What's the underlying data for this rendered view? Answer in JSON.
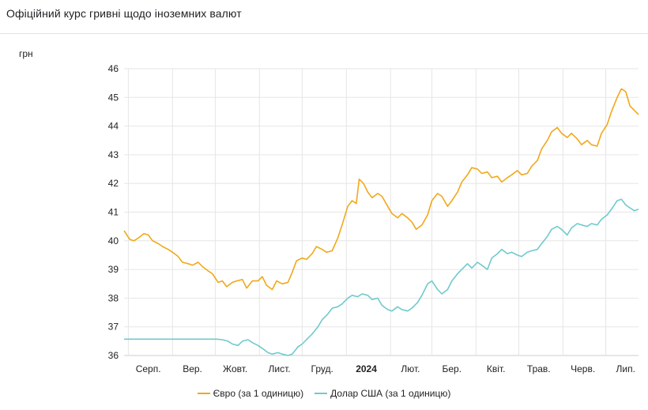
{
  "title": "Офіційний курс гривні щодо іноземних валют",
  "colors": {
    "euro": "#f1a81a",
    "usd": "#6fcacd",
    "grid": "#e6e6e6",
    "axis": "#cccccc"
  },
  "chart_data": {
    "type": "line",
    "ylabel": "грн",
    "ylim": [
      36,
      46
    ],
    "y_ticks": [
      36,
      37,
      38,
      39,
      40,
      41,
      42,
      43,
      44,
      45,
      46
    ],
    "x_range": [
      "2023-07-29",
      "2024-07-24"
    ],
    "x_ticks": [
      {
        "label": "Серп.",
        "date": "2023-08-15",
        "bold": false
      },
      {
        "label": "Вер.",
        "date": "2023-09-15",
        "bold": false
      },
      {
        "label": "Жовт.",
        "date": "2023-10-15",
        "bold": false
      },
      {
        "label": "Лист.",
        "date": "2023-11-15",
        "bold": false
      },
      {
        "label": "Груд.",
        "date": "2023-12-15",
        "bold": false
      },
      {
        "label": "2024",
        "date": "2024-01-15",
        "bold": true
      },
      {
        "label": "Лют.",
        "date": "2024-02-15",
        "bold": false
      },
      {
        "label": "Бер.",
        "date": "2024-03-15",
        "bold": false
      },
      {
        "label": "Квіт.",
        "date": "2024-04-15",
        "bold": false
      },
      {
        "label": "Трав.",
        "date": "2024-05-15",
        "bold": false
      },
      {
        "label": "Черв.",
        "date": "2024-06-15",
        "bold": false
      },
      {
        "label": "Лип.",
        "date": "2024-07-15",
        "bold": false
      }
    ],
    "grid_dates": [
      "2023-08-01",
      "2023-09-01",
      "2023-10-01",
      "2023-11-01",
      "2023-12-01",
      "2024-01-01",
      "2024-02-01",
      "2024-03-01",
      "2024-04-01",
      "2024-05-01",
      "2024-06-01",
      "2024-07-01"
    ],
    "grid": true,
    "legend_position": "bottom",
    "series": [
      {
        "name": "Євро (за 1 одиницю)",
        "key": "euro",
        "points": [
          [
            "2023-07-29",
            40.35
          ],
          [
            "2023-08-02",
            40.05
          ],
          [
            "2023-08-05",
            40.0
          ],
          [
            "2023-08-08",
            40.1
          ],
          [
            "2023-08-12",
            40.25
          ],
          [
            "2023-08-15",
            40.2
          ],
          [
            "2023-08-18",
            40.0
          ],
          [
            "2023-08-22",
            39.9
          ],
          [
            "2023-08-25",
            39.8
          ],
          [
            "2023-08-29",
            39.7
          ],
          [
            "2023-09-01",
            39.6
          ],
          [
            "2023-09-05",
            39.45
          ],
          [
            "2023-09-08",
            39.25
          ],
          [
            "2023-09-12",
            39.2
          ],
          [
            "2023-09-15",
            39.15
          ],
          [
            "2023-09-19",
            39.25
          ],
          [
            "2023-09-22",
            39.1
          ],
          [
            "2023-09-26",
            38.95
          ],
          [
            "2023-09-29",
            38.85
          ],
          [
            "2023-10-03",
            38.55
          ],
          [
            "2023-10-06",
            38.6
          ],
          [
            "2023-10-09",
            38.4
          ],
          [
            "2023-10-13",
            38.55
          ],
          [
            "2023-10-16",
            38.6
          ],
          [
            "2023-10-20",
            38.65
          ],
          [
            "2023-10-23",
            38.35
          ],
          [
            "2023-10-27",
            38.6
          ],
          [
            "2023-10-31",
            38.6
          ],
          [
            "2023-11-03",
            38.75
          ],
          [
            "2023-11-06",
            38.45
          ],
          [
            "2023-11-10",
            38.3
          ],
          [
            "2023-11-13",
            38.6
          ],
          [
            "2023-11-17",
            38.5
          ],
          [
            "2023-11-21",
            38.55
          ],
          [
            "2023-11-24",
            38.9
          ],
          [
            "2023-11-27",
            39.3
          ],
          [
            "2023-12-01",
            39.4
          ],
          [
            "2023-12-04",
            39.35
          ],
          [
            "2023-12-08",
            39.55
          ],
          [
            "2023-12-11",
            39.8
          ],
          [
            "2023-12-15",
            39.7
          ],
          [
            "2023-12-18",
            39.6
          ],
          [
            "2023-12-22",
            39.65
          ],
          [
            "2023-12-26",
            40.1
          ],
          [
            "2023-12-29",
            40.55
          ],
          [
            "2024-01-02",
            41.2
          ],
          [
            "2024-01-05",
            41.4
          ],
          [
            "2024-01-08",
            41.3
          ],
          [
            "2024-01-10",
            42.15
          ],
          [
            "2024-01-13",
            42.0
          ],
          [
            "2024-01-16",
            41.7
          ],
          [
            "2024-01-19",
            41.5
          ],
          [
            "2024-01-23",
            41.65
          ],
          [
            "2024-01-26",
            41.55
          ],
          [
            "2024-01-30",
            41.2
          ],
          [
            "2024-02-02",
            40.95
          ],
          [
            "2024-02-06",
            40.8
          ],
          [
            "2024-02-09",
            40.95
          ],
          [
            "2024-02-13",
            40.8
          ],
          [
            "2024-02-16",
            40.65
          ],
          [
            "2024-02-19",
            40.4
          ],
          [
            "2024-02-23",
            40.55
          ],
          [
            "2024-02-27",
            40.9
          ],
          [
            "2024-03-01",
            41.4
          ],
          [
            "2024-03-05",
            41.65
          ],
          [
            "2024-03-08",
            41.55
          ],
          [
            "2024-03-12",
            41.2
          ],
          [
            "2024-03-15",
            41.4
          ],
          [
            "2024-03-19",
            41.7
          ],
          [
            "2024-03-22",
            42.05
          ],
          [
            "2024-03-26",
            42.3
          ],
          [
            "2024-03-29",
            42.55
          ],
          [
            "2024-04-02",
            42.5
          ],
          [
            "2024-04-05",
            42.35
          ],
          [
            "2024-04-09",
            42.4
          ],
          [
            "2024-04-12",
            42.2
          ],
          [
            "2024-04-16",
            42.25
          ],
          [
            "2024-04-19",
            42.05
          ],
          [
            "2024-04-23",
            42.2
          ],
          [
            "2024-04-26",
            42.3
          ],
          [
            "2024-04-30",
            42.45
          ],
          [
            "2024-05-03",
            42.3
          ],
          [
            "2024-05-07",
            42.35
          ],
          [
            "2024-05-10",
            42.6
          ],
          [
            "2024-05-14",
            42.8
          ],
          [
            "2024-05-17",
            43.2
          ],
          [
            "2024-05-21",
            43.5
          ],
          [
            "2024-05-24",
            43.8
          ],
          [
            "2024-05-28",
            43.95
          ],
          [
            "2024-05-31",
            43.75
          ],
          [
            "2024-06-04",
            43.6
          ],
          [
            "2024-06-07",
            43.75
          ],
          [
            "2024-06-11",
            43.55
          ],
          [
            "2024-06-14",
            43.35
          ],
          [
            "2024-06-18",
            43.5
          ],
          [
            "2024-06-21",
            43.35
          ],
          [
            "2024-06-25",
            43.3
          ],
          [
            "2024-06-28",
            43.75
          ],
          [
            "2024-07-02",
            44.05
          ],
          [
            "2024-07-05",
            44.5
          ],
          [
            "2024-07-09",
            45.0
          ],
          [
            "2024-07-12",
            45.3
          ],
          [
            "2024-07-15",
            45.2
          ],
          [
            "2024-07-18",
            44.7
          ],
          [
            "2024-07-21",
            44.55
          ],
          [
            "2024-07-24",
            44.4
          ]
        ]
      },
      {
        "name": "Долар США (за 1 одиницю)",
        "key": "usd",
        "points": [
          [
            "2023-07-29",
            36.57
          ],
          [
            "2023-08-15",
            36.57
          ],
          [
            "2023-09-01",
            36.57
          ],
          [
            "2023-09-15",
            36.57
          ],
          [
            "2023-10-02",
            36.57
          ],
          [
            "2023-10-06",
            36.55
          ],
          [
            "2023-10-10",
            36.5
          ],
          [
            "2023-10-13",
            36.4
          ],
          [
            "2023-10-17",
            36.35
          ],
          [
            "2023-10-20",
            36.5
          ],
          [
            "2023-10-24",
            36.55
          ],
          [
            "2023-10-27",
            36.45
          ],
          [
            "2023-10-31",
            36.35
          ],
          [
            "2023-11-03",
            36.25
          ],
          [
            "2023-11-07",
            36.1
          ],
          [
            "2023-11-10",
            36.05
          ],
          [
            "2023-11-14",
            36.1
          ],
          [
            "2023-11-17",
            36.05
          ],
          [
            "2023-11-21",
            36.0
          ],
          [
            "2023-11-24",
            36.05
          ],
          [
            "2023-11-28",
            36.3
          ],
          [
            "2023-12-01",
            36.4
          ],
          [
            "2023-12-05",
            36.6
          ],
          [
            "2023-12-08",
            36.75
          ],
          [
            "2023-12-12",
            37.0
          ],
          [
            "2023-12-15",
            37.25
          ],
          [
            "2023-12-19",
            37.45
          ],
          [
            "2023-12-22",
            37.65
          ],
          [
            "2023-12-26",
            37.7
          ],
          [
            "2023-12-29",
            37.8
          ],
          [
            "2024-01-02",
            38.0
          ],
          [
            "2024-01-05",
            38.1
          ],
          [
            "2024-01-09",
            38.05
          ],
          [
            "2024-01-12",
            38.15
          ],
          [
            "2024-01-16",
            38.1
          ],
          [
            "2024-01-19",
            37.95
          ],
          [
            "2024-01-23",
            38.0
          ],
          [
            "2024-01-26",
            37.75
          ],
          [
            "2024-01-30",
            37.6
          ],
          [
            "2024-02-02",
            37.55
          ],
          [
            "2024-02-06",
            37.7
          ],
          [
            "2024-02-09",
            37.6
          ],
          [
            "2024-02-13",
            37.55
          ],
          [
            "2024-02-16",
            37.65
          ],
          [
            "2024-02-20",
            37.85
          ],
          [
            "2024-02-23",
            38.1
          ],
          [
            "2024-02-27",
            38.5
          ],
          [
            "2024-03-01",
            38.6
          ],
          [
            "2024-03-05",
            38.3
          ],
          [
            "2024-03-08",
            38.15
          ],
          [
            "2024-03-12",
            38.3
          ],
          [
            "2024-03-15",
            38.6
          ],
          [
            "2024-03-19",
            38.85
          ],
          [
            "2024-03-22",
            39.0
          ],
          [
            "2024-03-26",
            39.2
          ],
          [
            "2024-03-29",
            39.05
          ],
          [
            "2024-04-02",
            39.25
          ],
          [
            "2024-04-05",
            39.15
          ],
          [
            "2024-04-09",
            39.0
          ],
          [
            "2024-04-12",
            39.4
          ],
          [
            "2024-04-16",
            39.55
          ],
          [
            "2024-04-19",
            39.7
          ],
          [
            "2024-04-23",
            39.55
          ],
          [
            "2024-04-26",
            39.6
          ],
          [
            "2024-04-30",
            39.5
          ],
          [
            "2024-05-03",
            39.45
          ],
          [
            "2024-05-07",
            39.6
          ],
          [
            "2024-05-10",
            39.65
          ],
          [
            "2024-05-14",
            39.7
          ],
          [
            "2024-05-17",
            39.9
          ],
          [
            "2024-05-21",
            40.15
          ],
          [
            "2024-05-24",
            40.4
          ],
          [
            "2024-05-28",
            40.5
          ],
          [
            "2024-05-31",
            40.4
          ],
          [
            "2024-06-04",
            40.2
          ],
          [
            "2024-06-07",
            40.45
          ],
          [
            "2024-06-11",
            40.6
          ],
          [
            "2024-06-14",
            40.55
          ],
          [
            "2024-06-18",
            40.5
          ],
          [
            "2024-06-21",
            40.6
          ],
          [
            "2024-06-25",
            40.55
          ],
          [
            "2024-06-28",
            40.75
          ],
          [
            "2024-07-02",
            40.9
          ],
          [
            "2024-07-05",
            41.1
          ],
          [
            "2024-07-09",
            41.4
          ],
          [
            "2024-07-12",
            41.45
          ],
          [
            "2024-07-15",
            41.25
          ],
          [
            "2024-07-18",
            41.15
          ],
          [
            "2024-07-21",
            41.05
          ],
          [
            "2024-07-24",
            41.1
          ]
        ]
      }
    ]
  }
}
